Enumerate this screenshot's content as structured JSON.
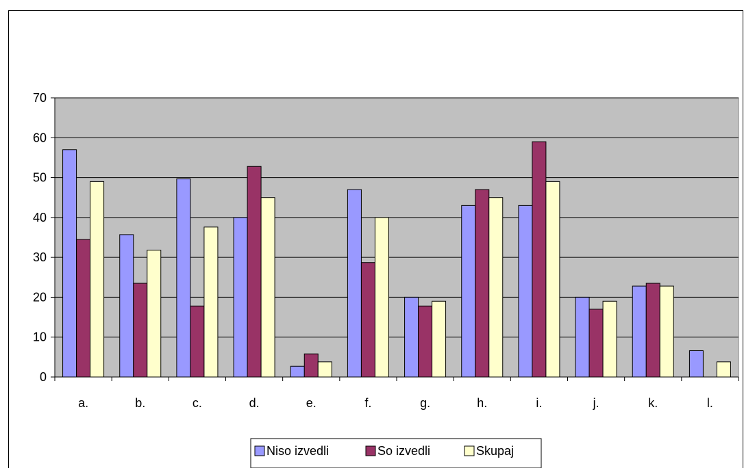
{
  "chart_data": {
    "type": "bar",
    "title": "",
    "xlabel": "",
    "ylabel": "",
    "ylim": [
      0,
      70
    ],
    "yticks": [
      0,
      10,
      20,
      30,
      40,
      50,
      60,
      70
    ],
    "grid": true,
    "legend_position": "bottom",
    "categories": [
      "a.",
      "b.",
      "c.",
      "d.",
      "e.",
      "f.",
      "g.",
      "h.",
      "i.",
      "j.",
      "k.",
      "l."
    ],
    "series": [
      {
        "name": "Niso izvedli",
        "color": "#9999FF",
        "values": [
          57,
          35.7,
          49.7,
          40,
          2.7,
          47,
          20,
          43,
          43,
          20,
          22.8,
          6.6
        ]
      },
      {
        "name": "So izvedli",
        "color": "#993366",
        "values": [
          34.5,
          23.5,
          17.8,
          52.8,
          5.8,
          28.7,
          17.8,
          47,
          59,
          17,
          23.5,
          0
        ]
      },
      {
        "name": "Skupaj",
        "color": "#FFFFCC",
        "values": [
          49,
          31.8,
          37.6,
          45,
          3.8,
          40,
          19,
          45,
          49,
          19,
          22.8,
          3.8
        ]
      }
    ],
    "plot_background": "#C0C0C0"
  }
}
